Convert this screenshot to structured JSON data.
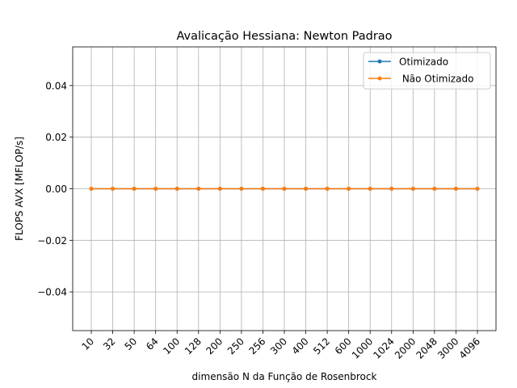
{
  "chart_data": {
    "type": "line",
    "title": "Avalicação Hessiana:  Newton Padrao",
    "xlabel": "dimensão N da Função de Rosenbrock",
    "ylabel": "FLOPS AVX [MFLOP/s]",
    "categories": [
      "10",
      "32",
      "50",
      "64",
      "100",
      "128",
      "200",
      "250",
      "256",
      "300",
      "400",
      "512",
      "600",
      "1000",
      "1024",
      "2000",
      "2048",
      "3000",
      "4096"
    ],
    "ylim": [
      -0.055,
      0.055
    ],
    "yticks": [
      -0.04,
      -0.02,
      0.0,
      0.02,
      0.04
    ],
    "ytick_labels": [
      "−0.04",
      "−0.02",
      "0.00",
      "0.02",
      "0.04"
    ],
    "grid": true,
    "legend_position": "upper right",
    "series": [
      {
        "name": "Otimizado",
        "color": "#1f77b4",
        "values": [
          0,
          0,
          0,
          0,
          0,
          0,
          0,
          0,
          0,
          0,
          0,
          0,
          0,
          0,
          0,
          0,
          0,
          0,
          0
        ]
      },
      {
        "name": " Não Otimizado",
        "color": "#ff7f0e",
        "values": [
          0,
          0,
          0,
          0,
          0,
          0,
          0,
          0,
          0,
          0,
          0,
          0,
          0,
          0,
          0,
          0,
          0,
          0,
          0
        ]
      }
    ]
  }
}
